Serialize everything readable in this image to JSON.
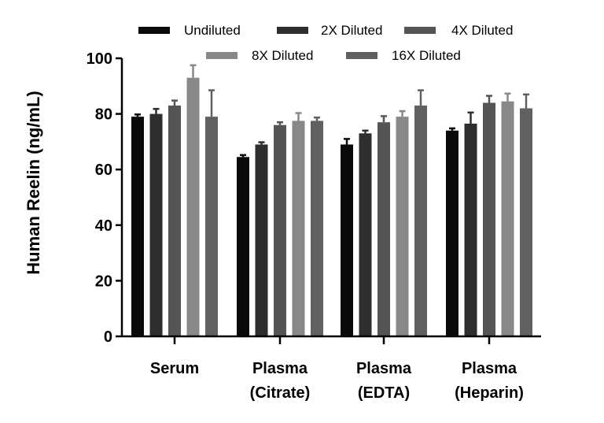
{
  "chart_data": {
    "type": "bar",
    "title": "",
    "xlabel": "",
    "ylabel": "Human Reelin (ng/mL)",
    "ylim": [
      0,
      100
    ],
    "yticks": [
      "0",
      "20",
      "40",
      "60",
      "80",
      "100"
    ],
    "yticks_values": [
      0,
      20,
      40,
      60,
      80,
      100
    ],
    "grid": false,
    "legend_position": "top",
    "categories": [
      [
        "Serum"
      ],
      [
        "Plasma",
        "(Citrate)"
      ],
      [
        "Plasma",
        "(EDTA)"
      ],
      [
        "Plasma",
        "(Heparin)"
      ]
    ],
    "series": [
      {
        "name": "Undiluted",
        "color": "#0a0a0a",
        "values": [
          79,
          64.5,
          69,
          74
        ],
        "errors": [
          0.8,
          0.7,
          2.0,
          0.8
        ]
      },
      {
        "name": "2X Diluted",
        "color": "#2e2e2e",
        "values": [
          80,
          69,
          73,
          76.5
        ],
        "errors": [
          1.8,
          0.8,
          1.0,
          4.0
        ]
      },
      {
        "name": "4X Diluted",
        "color": "#555555",
        "values": [
          83,
          76,
          77,
          84
        ],
        "errors": [
          1.8,
          1.0,
          2.2,
          2.5
        ]
      },
      {
        "name": "8X Diluted",
        "color": "#888888",
        "values": [
          93,
          77.5,
          79,
          84.5
        ],
        "errors": [
          4.5,
          2.8,
          2.0,
          2.8
        ]
      },
      {
        "name": "16X Diluted",
        "color": "#606060",
        "values": [
          79,
          77.5,
          83,
          82
        ],
        "errors": [
          9.5,
          1.2,
          5.5,
          5.0
        ]
      }
    ]
  }
}
